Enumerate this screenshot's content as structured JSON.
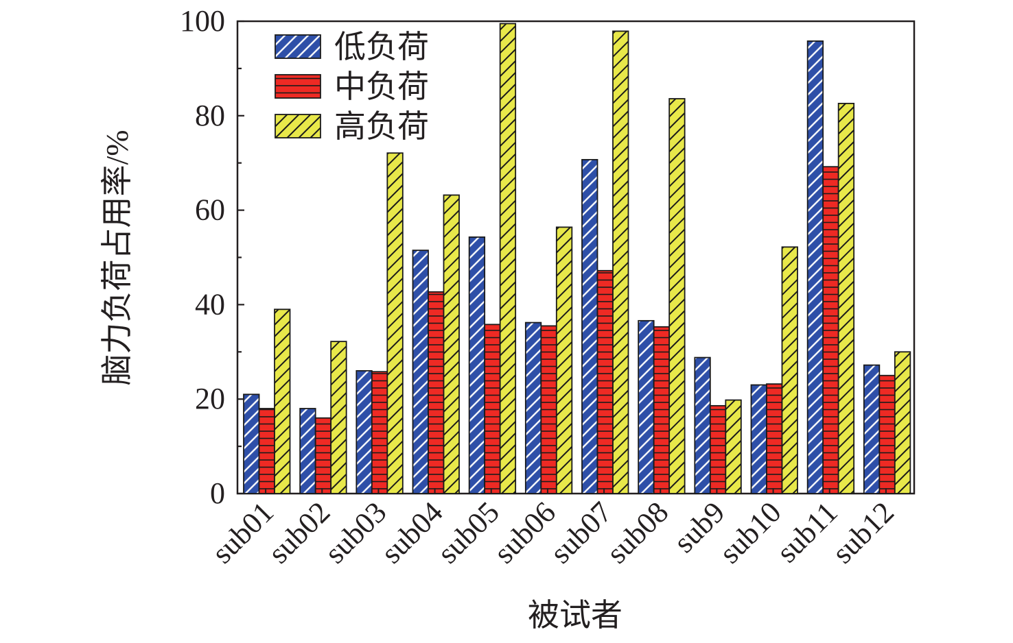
{
  "chart_data": {
    "type": "bar",
    "xlabel": "被试者",
    "ylabel": "脑力负荷占用率/%",
    "ylim": [
      0,
      100
    ],
    "yticks": [
      "0",
      "20",
      "40",
      "60",
      "80",
      "100"
    ],
    "categories": [
      "sub01",
      "sub02",
      "sub03",
      "sub04",
      "sub05",
      "sub06",
      "sub07",
      "sub08",
      "sub9",
      "sub10",
      "sub11",
      "sub12"
    ],
    "series": [
      {
        "name": "低负荷",
        "color": "#2e4fa8",
        "pattern": "diagonal-white",
        "values": [
          21,
          18,
          26,
          51.5,
          54.3,
          36.2,
          70.7,
          36.6,
          28.8,
          23,
          95.8,
          27.2
        ]
      },
      {
        "name": "中负荷",
        "color": "#ee2a24",
        "pattern": "horizontal-black",
        "values": [
          18,
          16,
          25.8,
          42.7,
          35.8,
          35.5,
          47.2,
          35.3,
          18.6,
          23.2,
          69.2,
          25
        ]
      },
      {
        "name": "高负荷",
        "color": "#e8e84a",
        "pattern": "diagonal-black",
        "values": [
          39,
          32.2,
          72.1,
          63.2,
          99.5,
          56.4,
          97.9,
          83.6,
          19.8,
          52.2,
          82.6,
          30
        ]
      }
    ],
    "legend_position": "top-left",
    "grid": false
  }
}
